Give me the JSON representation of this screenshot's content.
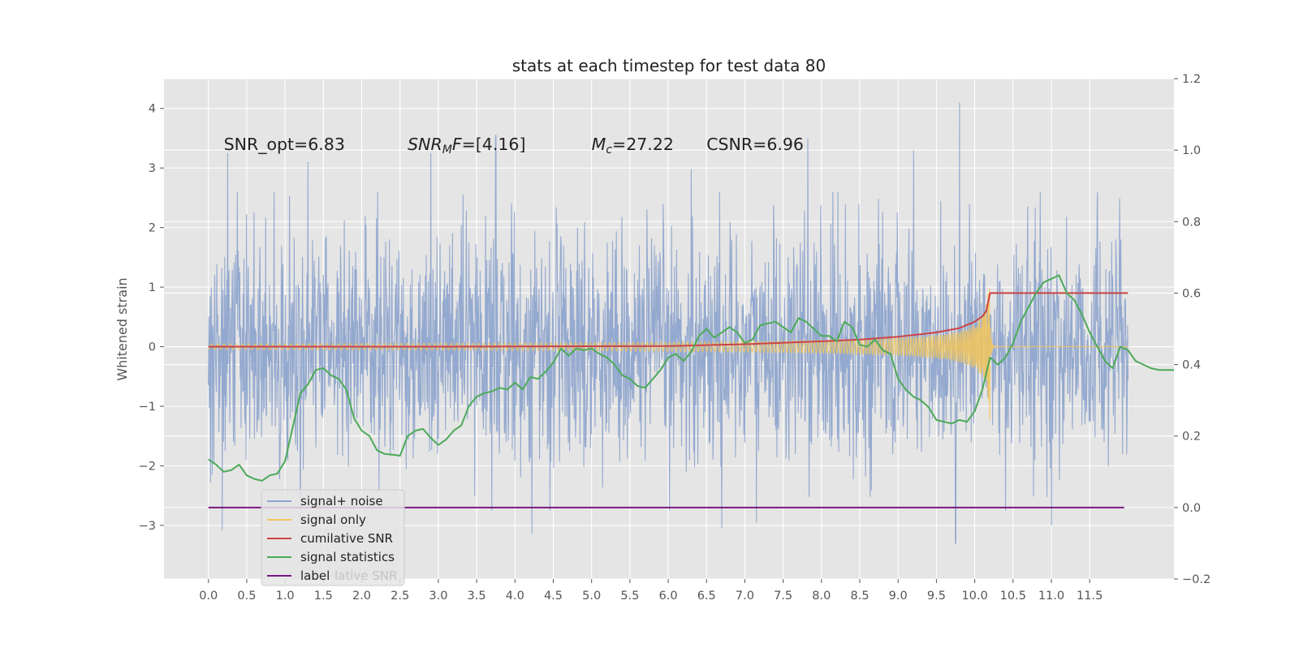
{
  "chart_data": {
    "type": "line",
    "title": "stats at each timestep for test data 80",
    "ylabel": "Whitened strain",
    "xlabel": "",
    "xlim": [
      -0.58,
      12.6
    ],
    "ylim": [
      -3.9,
      4.5
    ],
    "y2lim": [
      -0.2,
      1.2
    ],
    "x_ticks": [
      "0.0",
      "0.5",
      "1.0",
      "1.5",
      "2.0",
      "2.5",
      "3.0",
      "3.5",
      "4.0",
      "4.5",
      "5.0",
      "5.5",
      "6.0",
      "6.5",
      "7.0",
      "7.5",
      "8.0",
      "8.5",
      "9.0",
      "9.5",
      "10.0",
      "10.5",
      "11.0",
      "11.5"
    ],
    "y_ticks": [
      "4",
      "3",
      "2",
      "1",
      "0",
      "−1",
      "−2",
      "−3"
    ],
    "y2_ticks": [
      "1.2",
      "1.0",
      "0.8",
      "0.6",
      "0.4",
      "0.2",
      "0.0",
      "−0.2"
    ],
    "grid": true,
    "legend": {
      "placement": "lower-left",
      "entries": [
        {
          "label": "signal+ noise",
          "color": "#8fa5cd"
        },
        {
          "label": "signal only",
          "color": "#f2c55c"
        },
        {
          "label": "cumilative SNR",
          "color": "#cc4444"
        },
        {
          "label": "signal statistics",
          "color": "#4caa58"
        },
        {
          "label": "label",
          "color": "#7a1a82"
        }
      ],
      "ghost_text": "lative SNR"
    },
    "annotations": [
      {
        "id": "snr_opt",
        "text": "SNR_opt=6.83",
        "x": 0.2,
        "y": 3.4
      },
      {
        "id": "snr_mf",
        "prefix": "SNR",
        "sub": "M",
        "mid": "F",
        "suffix": "=[4.16]",
        "x": 2.6,
        "y": 3.4
      },
      {
        "id": "mc",
        "prefix": "M",
        "sub": "c",
        "suffix": "=27.22",
        "x": 5.0,
        "y": 3.4
      },
      {
        "id": "csnr",
        "text": "CSNR=6.96",
        "x": 6.5,
        "y": 3.4
      }
    ],
    "series": [
      {
        "name": "signal+ noise",
        "axis": "left",
        "color": "#8fa5cd",
        "x_range": [
          0.0,
          12.0
        ],
        "std": 0.95,
        "spikes": [
          [
            0.25,
            3.25
          ],
          [
            1.3,
            3.1
          ],
          [
            2.9,
            3.25
          ],
          [
            3.75,
            3.55
          ],
          [
            6.3,
            2.98
          ],
          [
            7.82,
            3.5
          ],
          [
            9.2,
            3.3
          ],
          [
            9.8,
            4.1
          ],
          [
            11.6,
            2.6
          ],
          [
            1.2,
            -2.9
          ],
          [
            0.18,
            -3.08
          ],
          [
            4.22,
            -3.14
          ],
          [
            9.75,
            -3.3
          ],
          [
            10.4,
            -2.75
          ],
          [
            6.7,
            -3.05
          ],
          [
            11.0,
            -3.0
          ],
          [
            7.15,
            -2.95
          ]
        ]
      },
      {
        "name": "signal only",
        "axis": "left",
        "color": "#f2c55c",
        "x_range": [
          0.0,
          12.0
        ],
        "chirp_peak_x": 10.2,
        "peak_amplitude": 1.45
      },
      {
        "name": "cumilative SNR",
        "axis": "right",
        "color": "#cc4444",
        "points": [
          [
            0.0,
            0.45
          ],
          [
            3.0,
            0.45
          ],
          [
            6.0,
            0.452
          ],
          [
            7.0,
            0.457
          ],
          [
            8.0,
            0.465
          ],
          [
            8.5,
            0.47
          ],
          [
            9.0,
            0.478
          ],
          [
            9.5,
            0.49
          ],
          [
            9.8,
            0.502
          ],
          [
            10.0,
            0.52
          ],
          [
            10.1,
            0.535
          ],
          [
            10.15,
            0.55
          ],
          [
            10.2,
            0.6
          ],
          [
            12.0,
            0.6
          ]
        ]
      },
      {
        "name": "signal statistics",
        "axis": "right",
        "color": "#4caa58",
        "points": [
          [
            0.0,
            0.135
          ],
          [
            0.1,
            0.12
          ],
          [
            0.2,
            0.1
          ],
          [
            0.3,
            0.105
          ],
          [
            0.4,
            0.12
          ],
          [
            0.5,
            0.09
          ],
          [
            0.6,
            0.08
          ],
          [
            0.7,
            0.075
          ],
          [
            0.8,
            0.09
          ],
          [
            0.9,
            0.095
          ],
          [
            1.0,
            0.13
          ],
          [
            1.1,
            0.225
          ],
          [
            1.2,
            0.32
          ],
          [
            1.3,
            0.345
          ],
          [
            1.4,
            0.385
          ],
          [
            1.5,
            0.39
          ],
          [
            1.6,
            0.37
          ],
          [
            1.7,
            0.36
          ],
          [
            1.8,
            0.33
          ],
          [
            1.9,
            0.25
          ],
          [
            2.0,
            0.215
          ],
          [
            2.1,
            0.2
          ],
          [
            2.2,
            0.16
          ],
          [
            2.3,
            0.15
          ],
          [
            2.4,
            0.148
          ],
          [
            2.5,
            0.145
          ],
          [
            2.6,
            0.2
          ],
          [
            2.7,
            0.215
          ],
          [
            2.8,
            0.22
          ],
          [
            2.9,
            0.195
          ],
          [
            3.0,
            0.175
          ],
          [
            3.1,
            0.19
          ],
          [
            3.2,
            0.215
          ],
          [
            3.3,
            0.23
          ],
          [
            3.4,
            0.285
          ],
          [
            3.5,
            0.31
          ],
          [
            3.6,
            0.32
          ],
          [
            3.7,
            0.325
          ],
          [
            3.8,
            0.335
          ],
          [
            3.9,
            0.33
          ],
          [
            4.0,
            0.35
          ],
          [
            4.1,
            0.33
          ],
          [
            4.2,
            0.365
          ],
          [
            4.3,
            0.36
          ],
          [
            4.4,
            0.38
          ],
          [
            4.5,
            0.405
          ],
          [
            4.6,
            0.445
          ],
          [
            4.7,
            0.425
          ],
          [
            4.8,
            0.445
          ],
          [
            4.9,
            0.44
          ],
          [
            5.0,
            0.445
          ],
          [
            5.1,
            0.43
          ],
          [
            5.2,
            0.42
          ],
          [
            5.3,
            0.4
          ],
          [
            5.4,
            0.37
          ],
          [
            5.5,
            0.36
          ],
          [
            5.6,
            0.34
          ],
          [
            5.7,
            0.335
          ],
          [
            5.8,
            0.36
          ],
          [
            5.9,
            0.385
          ],
          [
            6.0,
            0.42
          ],
          [
            6.1,
            0.43
          ],
          [
            6.2,
            0.41
          ],
          [
            6.3,
            0.435
          ],
          [
            6.4,
            0.48
          ],
          [
            6.5,
            0.5
          ],
          [
            6.6,
            0.475
          ],
          [
            6.7,
            0.49
          ],
          [
            6.8,
            0.505
          ],
          [
            6.9,
            0.49
          ],
          [
            7.0,
            0.46
          ],
          [
            7.1,
            0.47
          ],
          [
            7.2,
            0.51
          ],
          [
            7.3,
            0.515
          ],
          [
            7.4,
            0.52
          ],
          [
            7.5,
            0.505
          ],
          [
            7.6,
            0.49
          ],
          [
            7.7,
            0.53
          ],
          [
            7.8,
            0.52
          ],
          [
            7.9,
            0.5
          ],
          [
            8.0,
            0.48
          ],
          [
            8.1,
            0.48
          ],
          [
            8.2,
            0.465
          ],
          [
            8.3,
            0.52
          ],
          [
            8.4,
            0.505
          ],
          [
            8.5,
            0.455
          ],
          [
            8.6,
            0.45
          ],
          [
            8.7,
            0.47
          ],
          [
            8.8,
            0.44
          ],
          [
            8.9,
            0.43
          ],
          [
            9.0,
            0.36
          ],
          [
            9.1,
            0.33
          ],
          [
            9.2,
            0.31
          ],
          [
            9.3,
            0.3
          ],
          [
            9.4,
            0.28
          ],
          [
            9.5,
            0.245
          ],
          [
            9.6,
            0.24
          ],
          [
            9.7,
            0.235
          ],
          [
            9.8,
            0.245
          ],
          [
            9.9,
            0.24
          ],
          [
            10.0,
            0.27
          ],
          [
            10.1,
            0.33
          ],
          [
            10.2,
            0.42
          ],
          [
            10.3,
            0.4
          ],
          [
            10.4,
            0.42
          ],
          [
            10.5,
            0.46
          ],
          [
            10.6,
            0.52
          ],
          [
            10.7,
            0.56
          ],
          [
            10.8,
            0.6
          ],
          [
            10.9,
            0.63
          ],
          [
            11.0,
            0.64
          ],
          [
            11.1,
            0.65
          ],
          [
            11.2,
            0.6
          ],
          [
            11.3,
            0.58
          ],
          [
            11.4,
            0.54
          ],
          [
            11.5,
            0.49
          ],
          [
            11.6,
            0.45
          ],
          [
            11.7,
            0.41
          ],
          [
            11.8,
            0.39
          ],
          [
            11.9,
            0.45
          ],
          [
            12.0,
            0.44
          ],
          [
            12.1,
            0.41
          ],
          [
            12.2,
            0.4
          ],
          [
            12.3,
            0.39
          ],
          [
            12.4,
            0.385
          ],
          [
            12.6,
            0.385
          ]
        ]
      },
      {
        "name": "label",
        "axis": "right",
        "color": "#7a1a82",
        "points": [
          [
            0.0,
            0.0
          ],
          [
            11.95,
            0.0
          ]
        ]
      }
    ]
  }
}
